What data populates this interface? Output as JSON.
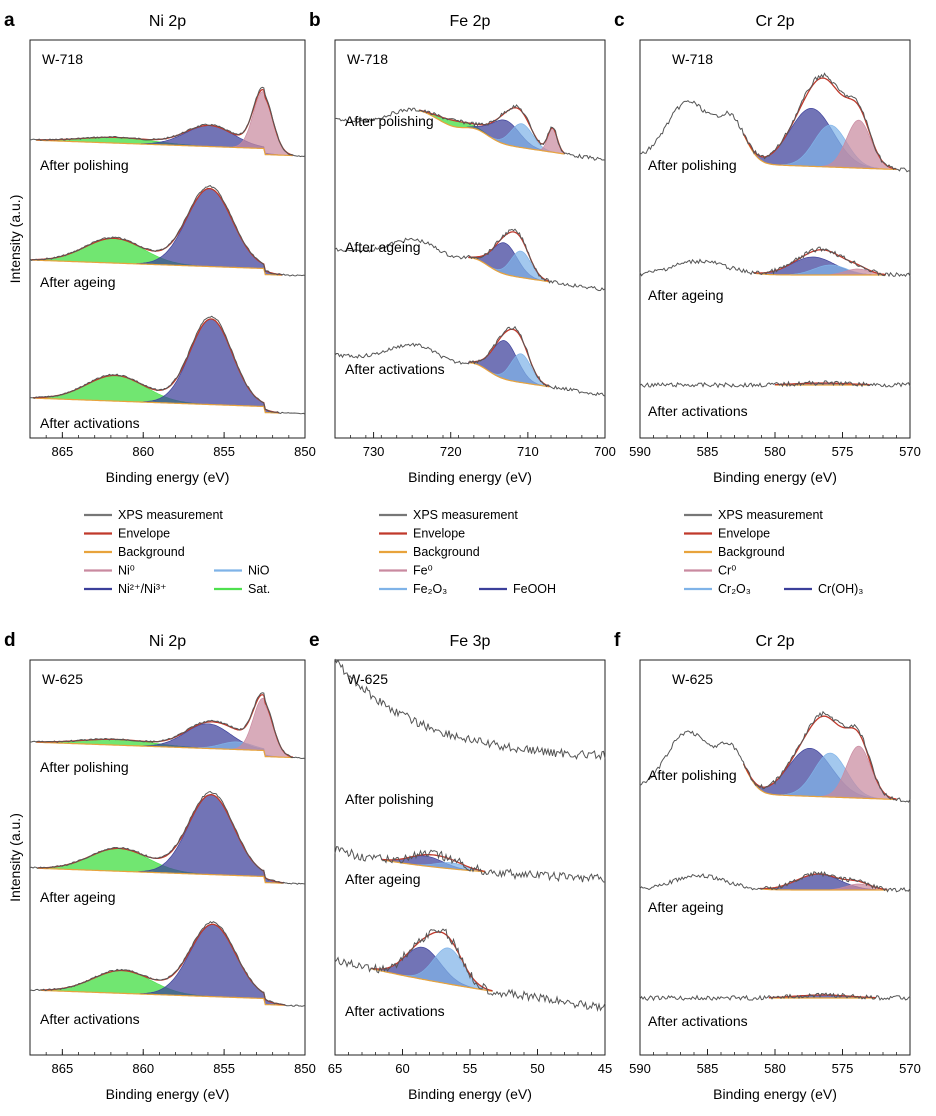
{
  "colors": {
    "measurement": "#555555",
    "envelope": "#c0392b",
    "background": "#e8a33c",
    "metal": "#c98aa0",
    "oxide": "#7fb3e8",
    "hydroxide": "#3b3f9a",
    "satellite": "#4ee04e"
  },
  "axis_labels": {
    "intensity": "Intensity (a.u.)",
    "binding_energy": "Binding energy (eV)"
  },
  "legends": {
    "ni": {
      "measurement": "XPS measurement",
      "envelope": "Envelope",
      "background": "Background",
      "metal": "Ni⁰",
      "oxide": "NiO",
      "hydroxide": "Ni²⁺/Ni³⁺",
      "satellite": "Sat."
    },
    "fe": {
      "measurement": "XPS measurement",
      "envelope": "Envelope",
      "background": "Background",
      "metal": "Fe⁰",
      "oxide": "Fe₂O₃",
      "hydroxide": "FeOOH"
    },
    "cr": {
      "measurement": "XPS measurement",
      "envelope": "Envelope",
      "background": "Background",
      "metal": "Cr⁰",
      "oxide": "Cr₂O₃",
      "hydroxide": "Cr(OH)₃"
    }
  },
  "chart_data": [
    {
      "type": "line",
      "panel": "a",
      "title": "Ni 2p",
      "sample": "W-718",
      "xlabel": "Binding energy (eV)",
      "ylabel": "Intensity (a.u.)",
      "xlim": [
        867,
        850
      ],
      "ticks": [
        865,
        860,
        855,
        850
      ],
      "series": [
        {
          "name": "After polishing",
          "peaks": [
            {
              "component": "metal",
              "center": 852.6,
              "width": 0.6,
              "height": 60
            },
            {
              "component": "hydroxide",
              "center": 855.9,
              "width": 1.5,
              "height": 22
            },
            {
              "component": "satellite",
              "center": 861.6,
              "width": 2.2,
              "height": 6
            }
          ]
        },
        {
          "name": "After ageing",
          "peaks": [
            {
              "component": "hydroxide",
              "center": 855.9,
              "width": 1.4,
              "height": 82
            },
            {
              "component": "satellite",
              "center": 861.8,
              "width": 1.8,
              "height": 26
            }
          ]
        },
        {
          "name": "After activations",
          "peaks": [
            {
              "component": "hydroxide",
              "center": 855.8,
              "width": 1.3,
              "height": 90
            },
            {
              "component": "satellite",
              "center": 861.7,
              "width": 1.8,
              "height": 27
            }
          ]
        }
      ]
    },
    {
      "type": "line",
      "panel": "b",
      "title": "Fe 2p",
      "sample": "W-718",
      "xlabel": "Binding energy (eV)",
      "xlim": [
        735,
        700
      ],
      "ticks": [
        730,
        720,
        710,
        700
      ],
      "series": [
        {
          "name": "After polishing",
          "peaks": [
            {
              "component": "metal",
              "center": 706.8,
              "width": 0.6,
              "height": 20
            },
            {
              "component": "oxide",
              "center": 710.8,
              "width": 1.4,
              "height": 20
            },
            {
              "component": "hydroxide",
              "center": 712.9,
              "width": 1.8,
              "height": 20
            },
            {
              "component": "satellite",
              "center": 719.5,
              "width": 2.0,
              "height": 5
            }
          ]
        },
        {
          "name": "After ageing",
          "peaks": [
            {
              "component": "oxide",
              "center": 710.9,
              "width": 1.3,
              "height": 22
            },
            {
              "component": "hydroxide",
              "center": 713.0,
              "width": 1.6,
              "height": 26
            }
          ]
        },
        {
          "name": "After activations",
          "peaks": [
            {
              "component": "oxide",
              "center": 710.9,
              "width": 1.3,
              "height": 24
            },
            {
              "component": "hydroxide",
              "center": 713.0,
              "width": 1.6,
              "height": 32
            }
          ]
        }
      ]
    },
    {
      "type": "line",
      "panel": "c",
      "title": "Cr 2p",
      "sample": "W-718",
      "xlabel": "Binding energy (eV)",
      "xlim": [
        590,
        570
      ],
      "ticks": [
        590,
        585,
        580,
        575,
        570
      ],
      "series": [
        {
          "name": "After polishing",
          "peaks": [
            {
              "component": "metal",
              "center": 573.8,
              "width": 0.9,
              "height": 48
            },
            {
              "component": "oxide",
              "center": 575.9,
              "width": 1.2,
              "height": 42
            },
            {
              "component": "hydroxide",
              "center": 577.3,
              "width": 1.6,
              "height": 58
            }
          ]
        },
        {
          "name": "After ageing",
          "peaks": [
            {
              "component": "metal",
              "center": 573.9,
              "width": 0.9,
              "height": 6
            },
            {
              "component": "oxide",
              "center": 575.9,
              "width": 1.2,
              "height": 10
            },
            {
              "component": "hydroxide",
              "center": 577.2,
              "width": 1.6,
              "height": 18
            }
          ]
        },
        {
          "name": "After activations",
          "peaks": [
            {
              "component": "hydroxide",
              "center": 576.5,
              "width": 2.0,
              "height": 2
            }
          ]
        }
      ]
    },
    {
      "type": "line",
      "panel": "d",
      "title": "Ni 2p",
      "sample": "W-625",
      "xlabel": "Binding energy (eV)",
      "ylabel": "Intensity (a.u.)",
      "xlim": [
        867,
        850
      ],
      "ticks": [
        865,
        860,
        855,
        850
      ],
      "series": [
        {
          "name": "After polishing",
          "peaks": [
            {
              "component": "metal",
              "center": 852.6,
              "width": 0.6,
              "height": 55
            },
            {
              "component": "oxide",
              "center": 854.2,
              "width": 1.0,
              "height": 8
            },
            {
              "component": "hydroxide",
              "center": 856.0,
              "width": 1.4,
              "height": 26
            },
            {
              "component": "satellite",
              "center": 861.6,
              "width": 2.2,
              "height": 6
            }
          ]
        },
        {
          "name": "After ageing",
          "peaks": [
            {
              "component": "hydroxide",
              "center": 855.8,
              "width": 1.4,
              "height": 84
            },
            {
              "component": "satellite",
              "center": 861.5,
              "width": 1.8,
              "height": 24
            }
          ]
        },
        {
          "name": "After activations",
          "peaks": [
            {
              "component": "hydroxide",
              "center": 855.7,
              "width": 1.4,
              "height": 76
            },
            {
              "component": "satellite",
              "center": 861.3,
              "width": 1.8,
              "height": 24
            }
          ]
        }
      ]
    },
    {
      "type": "line",
      "panel": "e",
      "title": "Fe 3p",
      "sample": "W-625",
      "xlabel": "Binding energy (eV)",
      "xlim": [
        65,
        45
      ],
      "ticks": [
        65,
        60,
        55,
        50,
        45
      ],
      "series": [
        {
          "name": "After polishing",
          "peaks": []
        },
        {
          "name": "After ageing",
          "peaks": [
            {
              "component": "oxide",
              "center": 56.4,
              "width": 1.1,
              "height": 6
            },
            {
              "component": "hydroxide",
              "center": 58.3,
              "width": 1.3,
              "height": 10
            }
          ]
        },
        {
          "name": "After activations",
          "peaks": [
            {
              "component": "oxide",
              "center": 56.6,
              "width": 1.1,
              "height": 36
            },
            {
              "component": "hydroxide",
              "center": 58.5,
              "width": 1.3,
              "height": 32
            }
          ]
        }
      ]
    },
    {
      "type": "line",
      "panel": "f",
      "title": "Cr 2p",
      "sample": "W-625",
      "xlabel": "Binding energy (eV)",
      "xlim": [
        590,
        570
      ],
      "ticks": [
        590,
        585,
        580,
        575,
        570
      ],
      "series": [
        {
          "name": "After polishing",
          "peaks": [
            {
              "component": "metal",
              "center": 573.8,
              "width": 0.9,
              "height": 52
            },
            {
              "component": "oxide",
              "center": 575.9,
              "width": 1.2,
              "height": 44
            },
            {
              "component": "hydroxide",
              "center": 577.4,
              "width": 1.6,
              "height": 48
            }
          ]
        },
        {
          "name": "After ageing",
          "peaks": [
            {
              "component": "metal",
              "center": 573.8,
              "width": 0.9,
              "height": 6
            },
            {
              "component": "hydroxide",
              "center": 576.8,
              "width": 1.6,
              "height": 16
            }
          ]
        },
        {
          "name": "After activations",
          "peaks": [
            {
              "component": "hydroxide",
              "center": 576.5,
              "width": 2.0,
              "height": 3
            }
          ]
        }
      ]
    }
  ]
}
